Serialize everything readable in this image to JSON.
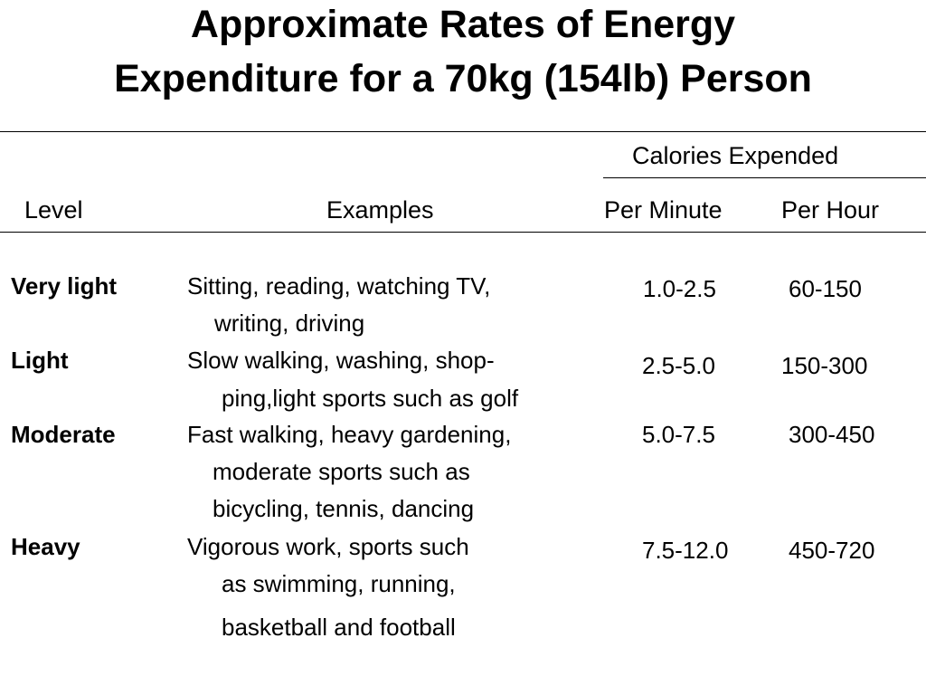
{
  "title": {
    "line1": "Approximate Rates of Energy",
    "line2": "Expenditure for a 70kg (154lb) Person"
  },
  "table": {
    "group_header": "Calories Expended",
    "headers": {
      "level": "Level",
      "examples": "Examples",
      "per_minute": "Per Minute",
      "per_hour": "Per Hour"
    },
    "rows": [
      {
        "level": "Very light",
        "examples": [
          "Sitting, reading, watching TV,",
          "writing, driving"
        ],
        "per_minute": "1.0-2.5",
        "per_hour": "60-150"
      },
      {
        "level": "Light",
        "examples": [
          "Slow walking, washing, shop-",
          "ping,light sports such as golf"
        ],
        "per_minute": "2.5-5.0",
        "per_hour": "150-300"
      },
      {
        "level": "Moderate",
        "examples": [
          "Fast walking, heavy gardening,",
          "moderate sports such as",
          "bicycling, tennis, dancing"
        ],
        "per_minute": "5.0-7.5",
        "per_hour": "300-450"
      },
      {
        "level": "Heavy",
        "examples": [
          "Vigorous work, sports such",
          "as swimming, running,",
          "basketball and football"
        ],
        "per_minute": "7.5-12.0",
        "per_hour": "450-720"
      }
    ]
  }
}
